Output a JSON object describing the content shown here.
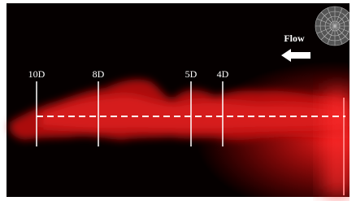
{
  "labels": {
    "flow": "Flow",
    "stations": [
      "10D",
      "8D",
      "5D",
      "4D"
    ]
  }
}
